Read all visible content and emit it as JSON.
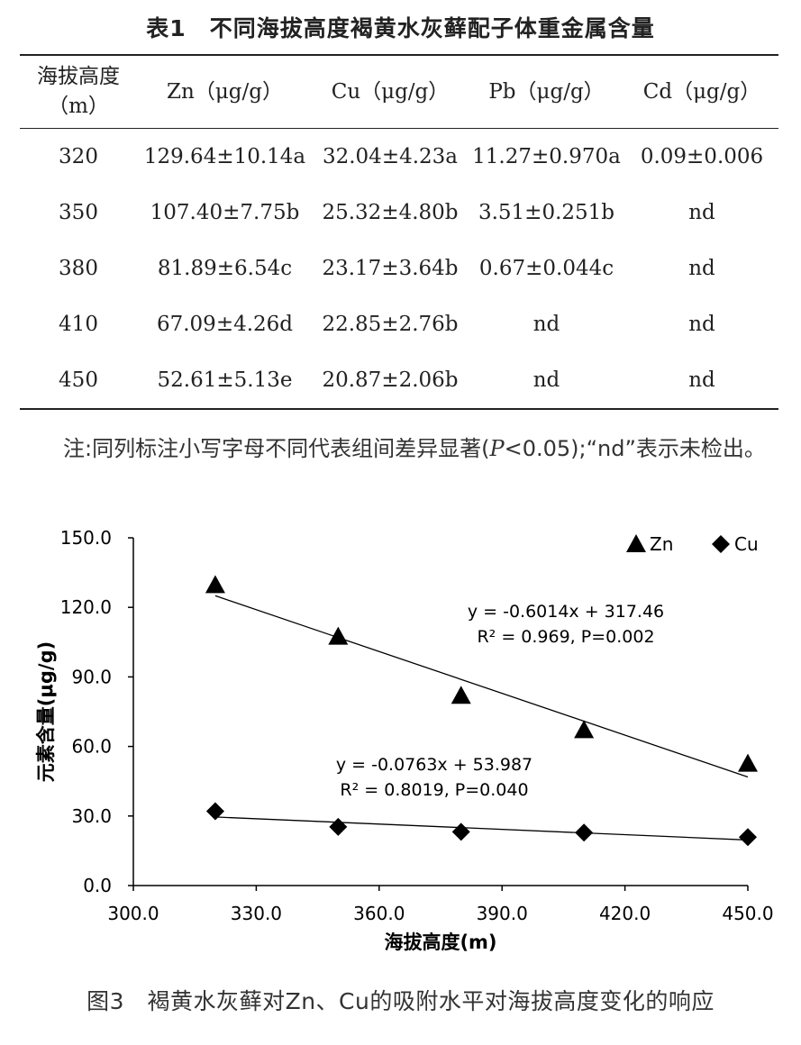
{
  "table": {
    "title": "表1　不同海拔高度褐黄水灰藓配子体重金属含量",
    "headers": [
      "海拔高度（m）",
      "Zn（μg/g）",
      "Cu（μg/g）",
      "Pb（μg/g）",
      "Cd（μg/g）"
    ],
    "rows": [
      [
        "320",
        "129.64±10.14a",
        "32.04±4.23a",
        "11.27±0.970a",
        "0.09±0.006"
      ],
      [
        "350",
        "107.40±7.75b",
        "25.32±4.80b",
        "3.51±0.251b",
        "nd"
      ],
      [
        "380",
        "81.89±6.54c",
        "23.17±3.64b",
        "0.67±0.044c",
        "nd"
      ],
      [
        "410",
        "67.09±4.26d",
        "22.85±2.76b",
        "nd",
        "nd"
      ],
      [
        "450",
        "52.61±5.13e",
        "20.87±2.06b",
        "nd",
        "nd"
      ]
    ],
    "note_prefix": "注:同列标注小写字母不同代表组间差异显著(",
    "note_p": "P",
    "note_suffix": "<0.05);“nd”表示未检出。"
  },
  "chart_data": {
    "type": "scatter",
    "xlabel": "海拔高度(m)",
    "ylabel": "元素含量(μg/g)",
    "xlim": [
      300,
      450
    ],
    "ylim": [
      0,
      150
    ],
    "xticks": [
      "300.0",
      "330.0",
      "360.0",
      "390.0",
      "420.0",
      "450.0"
    ],
    "yticks": [
      "0.0",
      "30.0",
      "60.0",
      "90.0",
      "120.0",
      "150.0"
    ],
    "legend_position": "top-right",
    "grid": false,
    "series": [
      {
        "name": "Zn",
        "marker": "triangle",
        "x": [
          320,
          350,
          380,
          410,
          450
        ],
        "y": [
          129.64,
          107.4,
          81.89,
          67.09,
          52.61
        ],
        "trendline": {
          "slope": -0.6014,
          "intercept": 317.46
        },
        "equation": "y = -0.6014x + 317.46",
        "r2_text": "R² = 0.969, P=0.002"
      },
      {
        "name": "Cu",
        "marker": "diamond",
        "x": [
          320,
          350,
          380,
          410,
          450
        ],
        "y": [
          32.04,
          25.32,
          23.17,
          22.85,
          20.87
        ],
        "trendline": {
          "slope": -0.0763,
          "intercept": 53.987
        },
        "equation": "y = -0.0763x + 53.987",
        "r2_text": "R² = 0.8019, P=0.040"
      }
    ],
    "color": "#000000"
  },
  "caption": "图3　褐黄水灰藓对Zn、Cu的吸附水平对海拔高度变化的响应"
}
